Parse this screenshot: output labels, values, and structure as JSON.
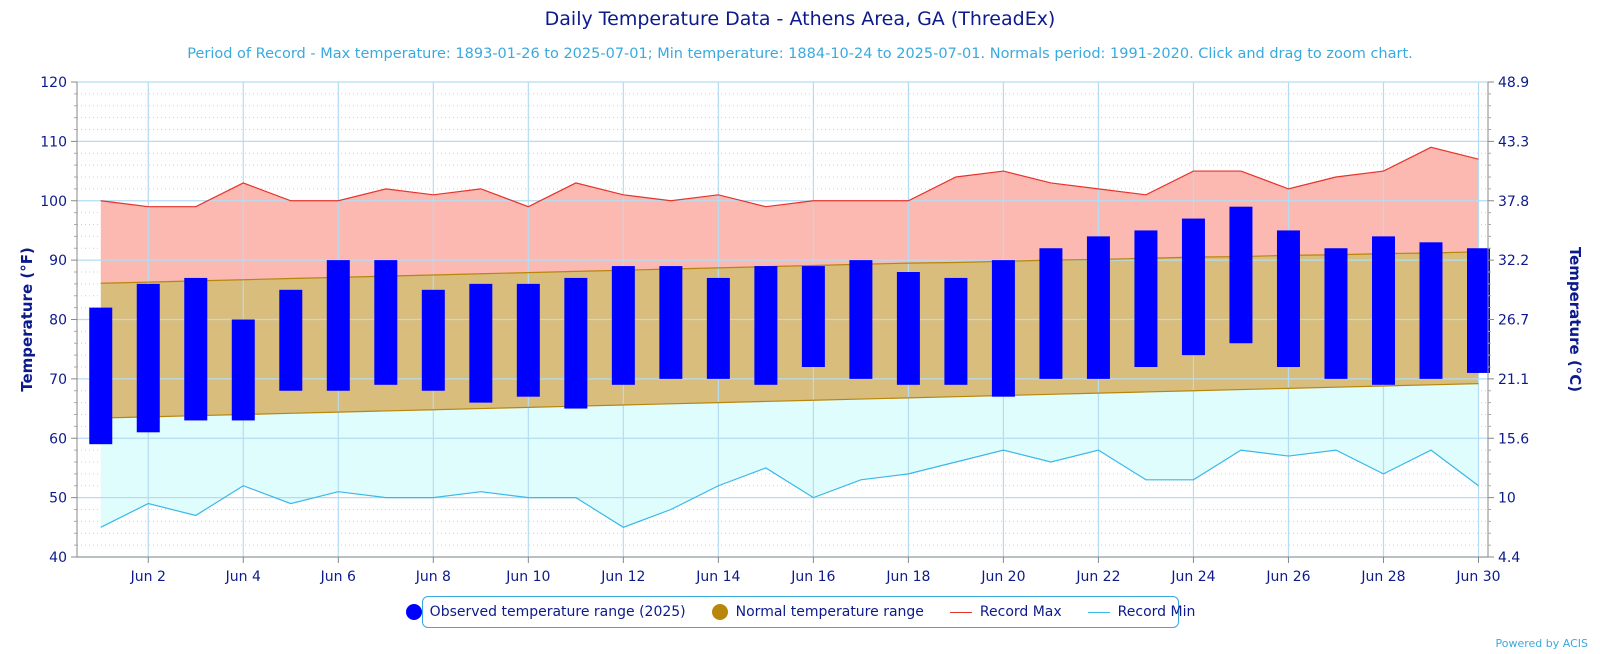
{
  "title": "Daily Temperature Data - Athens Area, GA (ThreadEx)",
  "subtitle": "Period of Record - Max temperature: 1893-01-26 to 2025-07-01; Min temperature: 1884-10-24 to 2025-07-01. Normals period: 1991-2020. Click and drag to zoom chart.",
  "credit": "Powered by ACIS",
  "colors": {
    "title": "#0d1a8c",
    "subtitle": "#3aa9de",
    "observed": "#0000ff",
    "normal_fill": "#d8bd7c",
    "normal_line": "#b8860b",
    "record_max_fill": "#fbb9b2",
    "record_max_line": "#e8332b",
    "record_min_fill": "#e0fdfd",
    "record_min_line": "#3ab8e8",
    "grid": "#b5dcf2"
  },
  "legend": {
    "observed": "Observed temperature range (2025)",
    "normal": "Normal temperature range",
    "record_max": "Record Max",
    "record_min": "Record Min"
  },
  "chart_data": {
    "type": "bar",
    "ylabel_left": "Temperature (°F)",
    "ylabel_right": "Temperature (°C)",
    "ylim": [
      40,
      120
    ],
    "yticks_left": [
      "40",
      "50",
      "60",
      "70",
      "80",
      "90",
      "100",
      "110",
      "120"
    ],
    "yticks_right": [
      "4.4",
      "10",
      "15.6",
      "21.1",
      "26.7",
      "32.2",
      "37.8",
      "43.3",
      "48.9"
    ],
    "xlim": [
      0.5,
      30.2
    ],
    "x_tick_labels": [
      "Jun 2",
      "Jun 4",
      "Jun 6",
      "Jun 8",
      "Jun 10",
      "Jun 12",
      "Jun 14",
      "Jun 16",
      "Jun 18",
      "Jun 20",
      "Jun 22",
      "Jun 24",
      "Jun 26",
      "Jun 28",
      "Jun 30"
    ],
    "days": [
      1,
      2,
      3,
      4,
      5,
      6,
      7,
      8,
      9,
      10,
      11,
      12,
      13,
      14,
      15,
      16,
      17,
      18,
      19,
      20,
      21,
      22,
      23,
      24,
      25,
      26,
      27,
      28,
      29,
      30
    ],
    "observed_max": [
      82,
      86,
      87,
      80,
      85,
      90,
      90,
      85,
      86,
      86,
      87,
      89,
      89,
      87,
      89,
      89,
      90,
      88,
      87,
      90,
      92,
      94,
      95,
      97,
      99,
      95,
      92,
      94,
      93,
      92
    ],
    "observed_min": [
      59,
      61,
      63,
      63,
      68,
      68,
      69,
      68,
      66,
      67,
      65,
      69,
      70,
      70,
      69,
      72,
      70,
      69,
      69,
      67,
      70,
      70,
      72,
      74,
      76,
      72,
      70,
      69,
      70,
      71
    ],
    "normal_max": [
      86.1,
      86.3,
      86.5,
      86.7,
      86.9,
      87.1,
      87.3,
      87.5,
      87.7,
      87.9,
      88.1,
      88.3,
      88.5,
      88.7,
      88.9,
      89.1,
      89.3,
      89.5,
      89.6,
      89.8,
      90.0,
      90.1,
      90.3,
      90.5,
      90.6,
      90.8,
      90.9,
      91.1,
      91.2,
      91.4
    ],
    "normal_min": [
      63.4,
      63.6,
      63.8,
      64.0,
      64.2,
      64.4,
      64.6,
      64.8,
      65.0,
      65.2,
      65.4,
      65.6,
      65.8,
      66.0,
      66.2,
      66.4,
      66.6,
      66.8,
      67.0,
      67.2,
      67.4,
      67.6,
      67.8,
      68.0,
      68.2,
      68.4,
      68.6,
      68.8,
      69.0,
      69.2
    ],
    "record_max": [
      100,
      99,
      99,
      103,
      100,
      100,
      102,
      101,
      102,
      99,
      103,
      101,
      100,
      101,
      99,
      100,
      100,
      100,
      104,
      105,
      103,
      102,
      101,
      105,
      105,
      102,
      104,
      105,
      109,
      107
    ],
    "record_min": [
      45,
      49,
      47,
      52,
      49,
      51,
      50,
      50,
      51,
      50,
      50,
      45,
      48,
      52,
      55,
      50,
      53,
      54,
      56,
      58,
      56,
      58,
      53,
      53,
      58,
      57,
      58,
      54,
      58,
      52
    ],
    "grid": true,
    "legend_position": "bottom-center"
  }
}
